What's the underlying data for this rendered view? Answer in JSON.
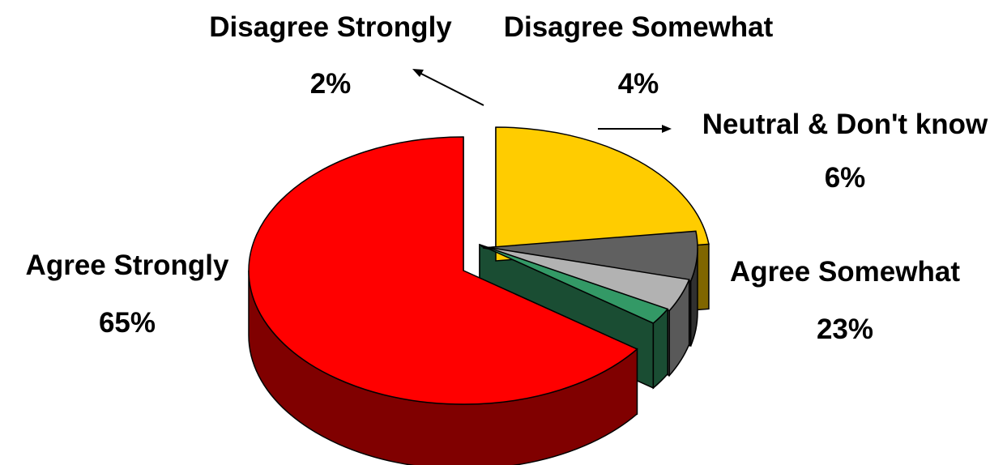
{
  "chart_data": {
    "type": "pie",
    "style": "3d-exploded",
    "slices": [
      {
        "label": "Agree Somewhat",
        "value_label": "23%",
        "value": 23,
        "color": "#FFCC00",
        "side_color": "#806600"
      },
      {
        "label": "Neutral & Don't know",
        "value_label": "6%",
        "value": 6,
        "color": "#606060",
        "side_color": "#303030"
      },
      {
        "label": "Disagree Somewhat",
        "value_label": "4%",
        "value": 4,
        "color": "#B2B2B2",
        "side_color": "#595959"
      },
      {
        "label": "Disagree Strongly",
        "value_label": "2%",
        "value": 2,
        "color": "#339966",
        "side_color": "#1A4D33"
      },
      {
        "label": "Agree Strongly",
        "value_label": "65%",
        "value": 65,
        "color": "#FF0000",
        "side_color": "#800000"
      }
    ]
  }
}
